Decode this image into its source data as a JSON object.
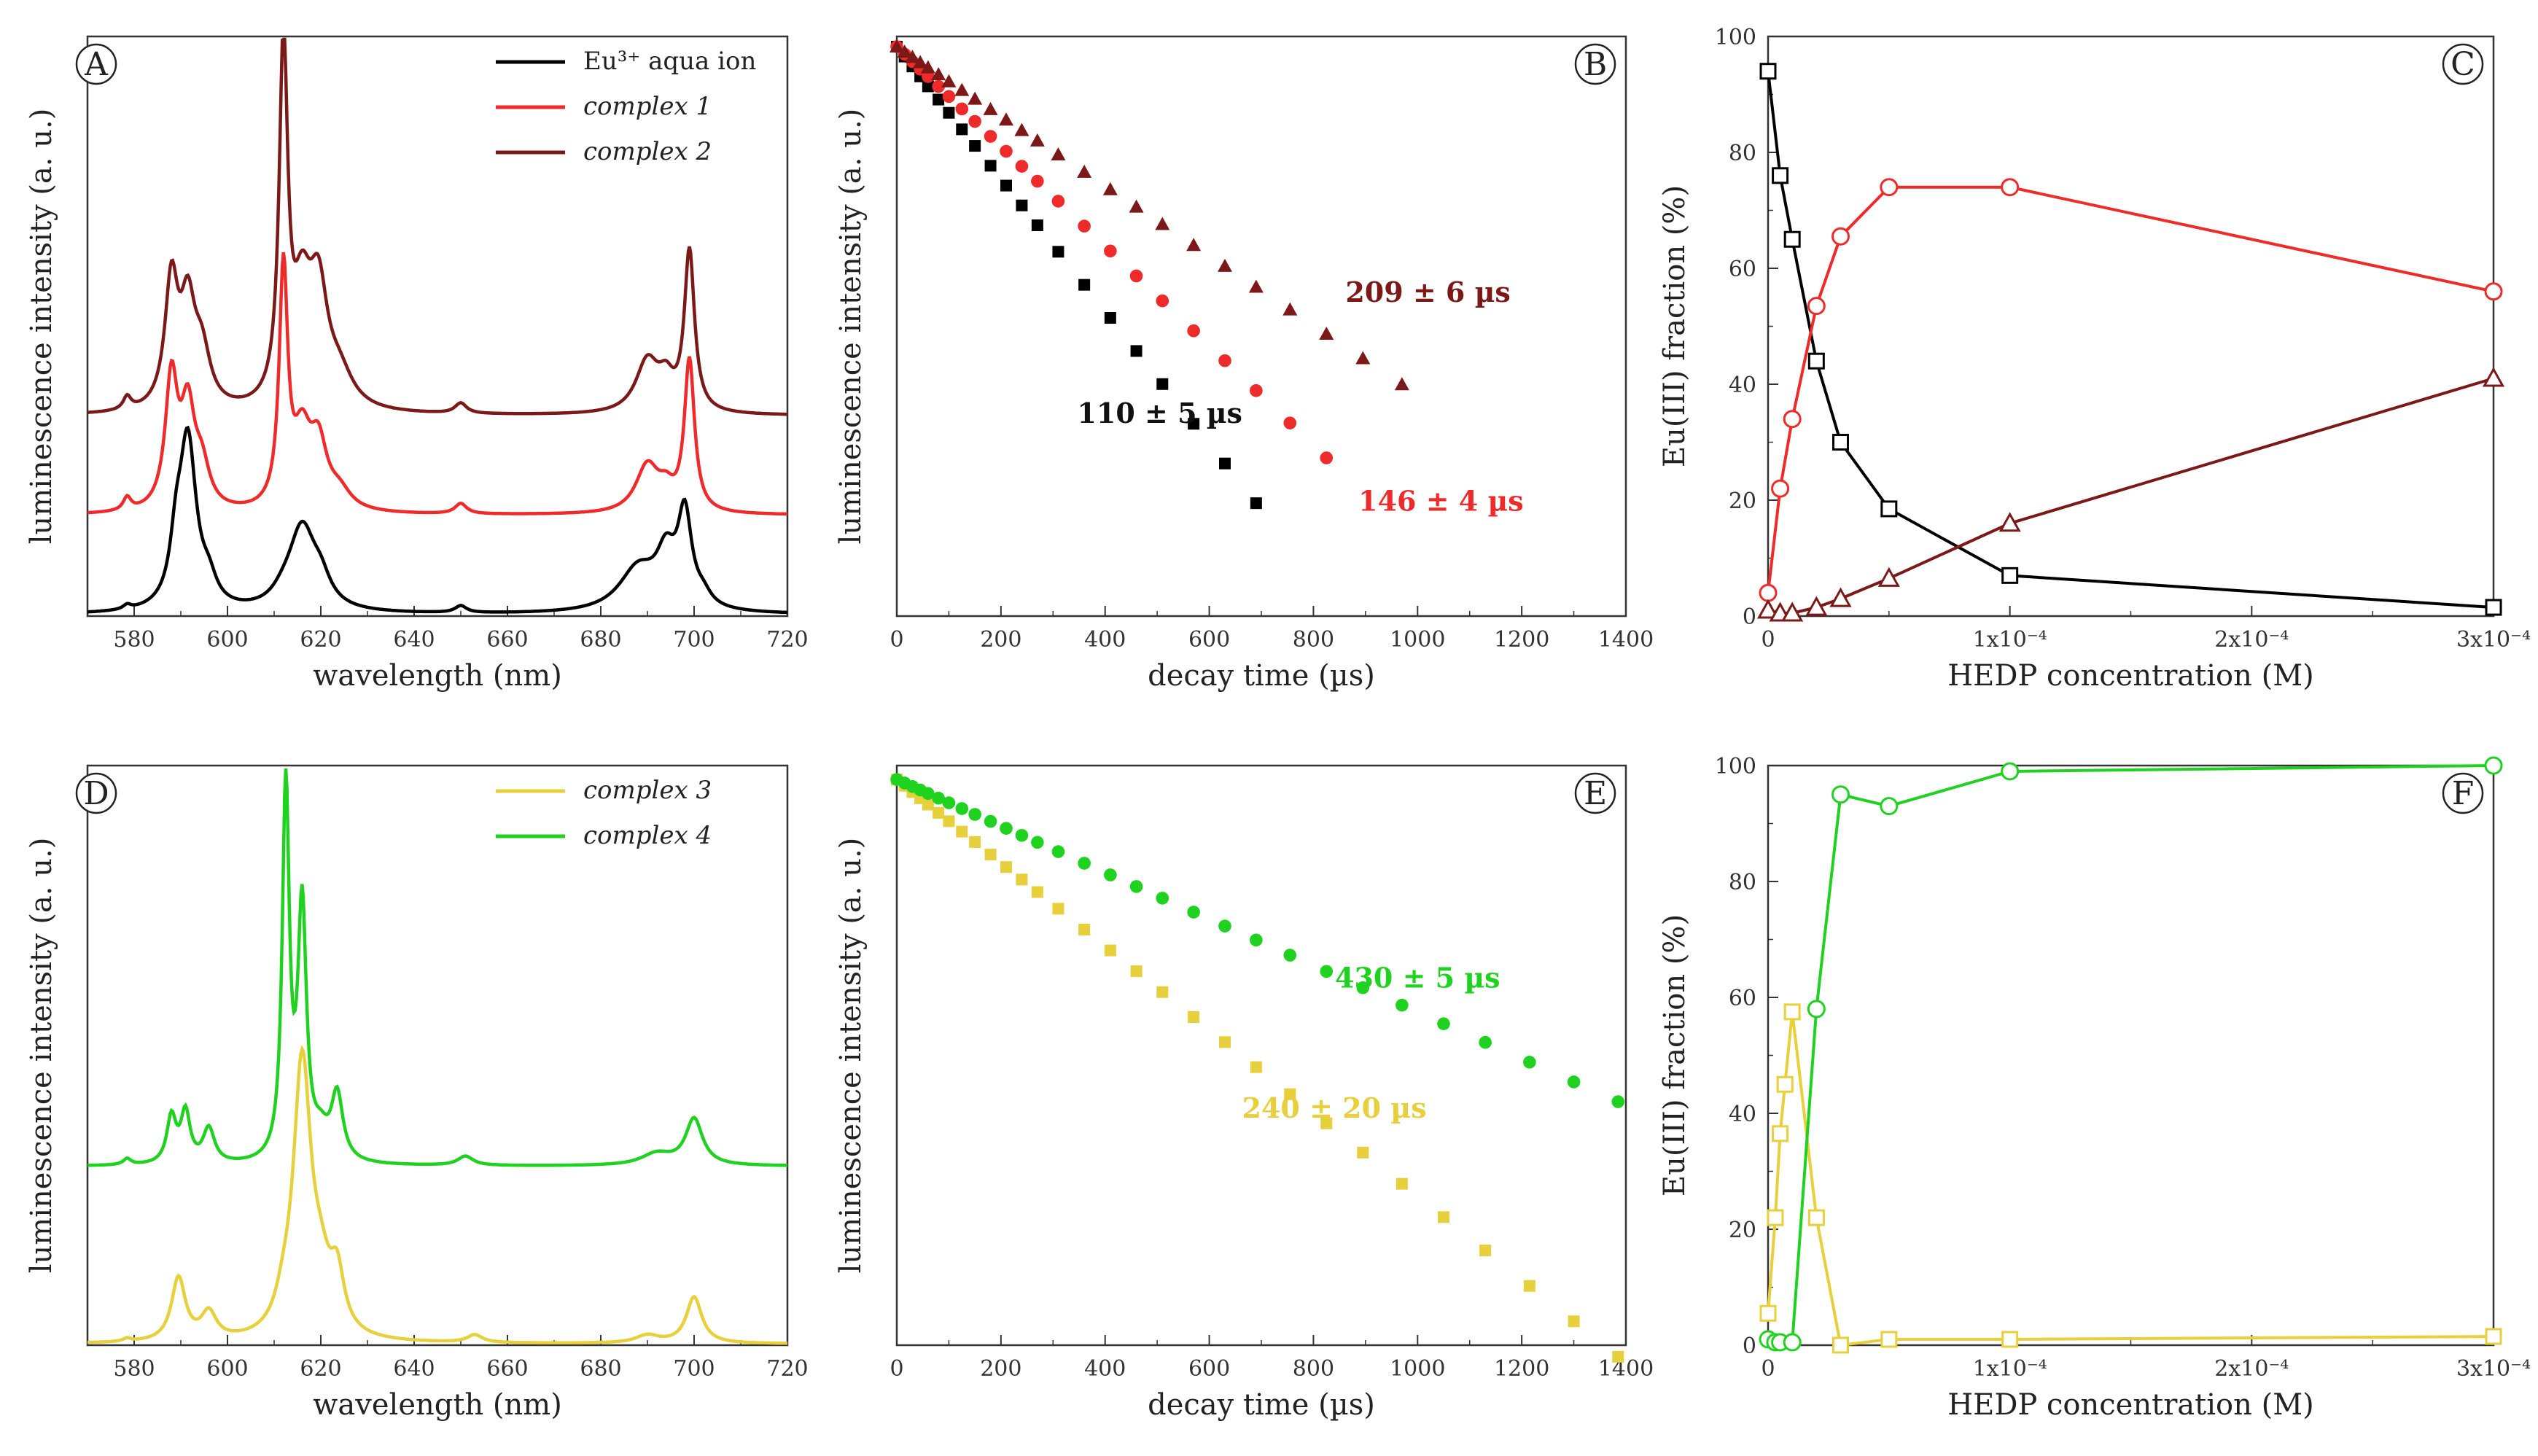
{
  "chart_data": [
    {
      "panel": "A",
      "type": "line",
      "xlabel": "wavelength (nm)",
      "ylabel": "luminescence intensity (a. u.)",
      "xlim": [
        570,
        720
      ],
      "ylim": [
        0,
        6.7
      ],
      "xticks": [
        580,
        600,
        620,
        640,
        660,
        680,
        700,
        720
      ],
      "legend": {
        "placement": "top-right",
        "entries": [
          {
            "text": "Eu³⁺ aqua ion",
            "italic": false,
            "color": "#000000"
          },
          {
            "text": "complex 1",
            "italic": true,
            "color": "#ee2a2a"
          },
          {
            "text": "complex 2",
            "italic": true,
            "color": "#7b1818"
          }
        ]
      },
      "series": [
        {
          "name": "Eu3+ aqua ion",
          "color": "#000000",
          "offset": 0,
          "peaks": [
            [
              578.5,
              0.05,
              1.0
            ],
            [
              589,
              0.55,
              1.5
            ],
            [
              591.5,
              1.95,
              2.2
            ],
            [
              596,
              0.25,
              2.0
            ],
            [
              612,
              0.1,
              3.0
            ],
            [
              616,
              0.95,
              3.5
            ],
            [
              620,
              0.25,
              2.5
            ],
            [
              650,
              0.08,
              1.5
            ],
            [
              688,
              0.5,
              5.0
            ],
            [
              694,
              0.55,
              2.5
            ],
            [
              698,
              1.05,
              1.8
            ],
            [
              702,
              0.12,
              2.0
            ]
          ]
        },
        {
          "name": "complex 1",
          "color": "#ee2a2a",
          "offset": 1.15,
          "peaks": [
            [
              578.5,
              0.15,
              1.0
            ],
            [
              588,
              1.5,
              1.6
            ],
            [
              591.5,
              1.1,
              1.8
            ],
            [
              594.5,
              0.45,
              2.0
            ],
            [
              612,
              2.75,
              1.1
            ],
            [
              616,
              0.8,
              2.3
            ],
            [
              619.5,
              0.7,
              2.2
            ],
            [
              624,
              0.2,
              3.0
            ],
            [
              650,
              0.12,
              1.5
            ],
            [
              690,
              0.55,
              3.0
            ],
            [
              694,
              0.2,
              2.0
            ],
            [
              699,
              1.75,
              1.3
            ]
          ]
        },
        {
          "name": "complex 2",
          "color": "#7b1818",
          "offset": 2.3,
          "peaks": [
            [
              578.5,
              0.15,
              1.0
            ],
            [
              588,
              1.45,
              1.7
            ],
            [
              591.5,
              1.1,
              1.9
            ],
            [
              594.5,
              0.6,
              2.2
            ],
            [
              612,
              4.1,
              1.1
            ],
            [
              616,
              1.15,
              2.4
            ],
            [
              619.5,
              1.25,
              2.4
            ],
            [
              624,
              0.35,
              3.5
            ],
            [
              650,
              0.12,
              1.5
            ],
            [
              690,
              0.6,
              3.0
            ],
            [
              694,
              0.3,
              2.0
            ],
            [
              699,
              1.85,
              1.3
            ]
          ]
        }
      ]
    },
    {
      "panel": "B",
      "type": "scatter",
      "xlabel": "decay time (µs)",
      "ylabel": "luminescence intensity (a. u.)",
      "xlim": [
        0,
        1400
      ],
      "yscale": "log",
      "ylim": [
        0.0004,
        1.15
      ],
      "xticks": [
        0,
        200,
        400,
        600,
        800,
        1000,
        1200,
        1400
      ],
      "series": [
        {
          "name": "Eu3+ aqua ion",
          "marker": "square",
          "color": "#000000",
          "lifetime": 110,
          "x": [
            0,
            15,
            30,
            45,
            60,
            80,
            100,
            125,
            150,
            180,
            210,
            240,
            270,
            310,
            360,
            410,
            460,
            510,
            570,
            630,
            690
          ]
        },
        {
          "name": "complex 1",
          "marker": "circle",
          "color": "#ee2a2a",
          "lifetime": 146,
          "x": [
            0,
            15,
            30,
            45,
            60,
            80,
            100,
            125,
            150,
            180,
            210,
            240,
            270,
            310,
            360,
            410,
            460,
            510,
            570,
            630,
            690,
            755,
            825
          ]
        },
        {
          "name": "complex 2",
          "marker": "triangle",
          "color": "#7b1818",
          "lifetime": 209,
          "x": [
            0,
            15,
            30,
            45,
            60,
            80,
            100,
            125,
            150,
            180,
            210,
            240,
            270,
            310,
            360,
            410,
            460,
            510,
            570,
            630,
            690,
            755,
            825,
            895,
            970
          ]
        }
      ],
      "annotations": [
        {
          "text": "209 ± 6 µs",
          "color": "#7b1818",
          "x": 1020,
          "y": 0.03
        },
        {
          "text": "110 ± 5 µs",
          "color": "#111111",
          "x": 505,
          "y": 0.0057
        },
        {
          "text": "146 ± 4 µs",
          "color": "#ee2a2a",
          "x": 1045,
          "y": 0.0017
        }
      ]
    },
    {
      "panel": "C",
      "type": "line",
      "xlabel": "HEDP concentration (M)",
      "ylabel": "Eu(III) fraction (%)",
      "xlim": [
        0,
        0.0003
      ],
      "ylim": [
        0,
        100
      ],
      "yticks": [
        0,
        20,
        40,
        60,
        80,
        100
      ],
      "xtick_labels": [
        "0",
        "1x10⁻⁴",
        "2x10⁻⁴",
        "3x10⁻⁴"
      ],
      "series": [
        {
          "name": "Eu3+ aqua ion",
          "marker": "square",
          "color": "#000000",
          "x": [
            0,
            5e-06,
            1e-05,
            2e-05,
            3e-05,
            5e-05,
            0.0001,
            0.0003
          ],
          "y": [
            94,
            76,
            65,
            44,
            30,
            18.5,
            7,
            1.5
          ]
        },
        {
          "name": "complex 1",
          "marker": "circle",
          "color": "#ee2a2a",
          "x": [
            0,
            5e-06,
            1e-05,
            2e-05,
            3e-05,
            5e-05,
            0.0001,
            0.0003
          ],
          "y": [
            4,
            22,
            34,
            53.5,
            65.5,
            74,
            74,
            56
          ]
        },
        {
          "name": "complex 2",
          "marker": "triangle",
          "color": "#7b1818",
          "x": [
            0,
            5e-06,
            1e-05,
            2e-05,
            3e-05,
            5e-05,
            0.0001,
            0.0003
          ],
          "y": [
            1,
            0.5,
            0.5,
            1.5,
            3,
            6.5,
            16,
            41
          ]
        }
      ]
    },
    {
      "panel": "D",
      "type": "line",
      "xlabel": "wavelength (nm)",
      "ylabel": "luminescence intensity (a. u.)",
      "xlim": [
        570,
        720
      ],
      "ylim": [
        0,
        7.5
      ],
      "xticks": [
        580,
        600,
        620,
        640,
        660,
        680,
        700,
        720
      ],
      "legend": {
        "placement": "top-right",
        "entries": [
          {
            "text": "complex 3",
            "italic": true,
            "color": "#e8cf3c"
          },
          {
            "text": "complex 4",
            "italic": true,
            "color": "#1fd21f"
          }
        ]
      },
      "series": [
        {
          "name": "complex 3",
          "color": "#e8cf3c",
          "offset": 0,
          "peaks": [
            [
              578.5,
              0.04,
              1.0
            ],
            [
              589.5,
              0.82,
              1.8
            ],
            [
              596,
              0.35,
              2.0
            ],
            [
              612,
              0.25,
              2.0
            ],
            [
              616,
              3.55,
              2.3
            ],
            [
              620,
              0.6,
              2.5
            ],
            [
              623.5,
              0.7,
              1.8
            ],
            [
              653,
              0.1,
              2.0
            ],
            [
              690,
              0.1,
              3.0
            ],
            [
              700,
              0.6,
              2.0
            ]
          ]
        },
        {
          "name": "complex 4",
          "color": "#1fd21f",
          "offset": 2.3,
          "peaks": [
            [
              578.5,
              0.08,
              1.0
            ],
            [
              588,
              0.6,
              1.2
            ],
            [
              591,
              0.65,
              1.2
            ],
            [
              596,
              0.45,
              1.5
            ],
            [
              612.5,
              4.85,
              0.9
            ],
            [
              616,
              3.25,
              1.1
            ],
            [
              620,
              0.3,
              2.0
            ],
            [
              623.5,
              0.85,
              1.5
            ],
            [
              651,
              0.12,
              2.0
            ],
            [
              692,
              0.15,
              4.0
            ],
            [
              700,
              0.6,
              2.2
            ]
          ]
        }
      ]
    },
    {
      "panel": "E",
      "type": "scatter",
      "xlabel": "decay time (µs)",
      "ylabel": "luminescence intensity (a. u.)",
      "xlim": [
        0,
        1400
      ],
      "yscale": "log",
      "ylim": [
        0.0035,
        1.15
      ],
      "xticks": [
        0,
        200,
        400,
        600,
        800,
        1000,
        1200,
        1400
      ],
      "series": [
        {
          "name": "complex 3",
          "marker": "square",
          "color": "#e8cf3c",
          "lifetime": 240,
          "x": [
            0,
            15,
            30,
            45,
            60,
            80,
            100,
            125,
            150,
            180,
            210,
            240,
            270,
            310,
            360,
            410,
            460,
            510,
            570,
            630,
            690,
            755,
            825,
            895,
            970,
            1050,
            1130,
            1215,
            1300,
            1385
          ]
        },
        {
          "name": "complex 4",
          "marker": "circle",
          "color": "#1fd21f",
          "lifetime": 430,
          "x": [
            0,
            15,
            30,
            45,
            60,
            80,
            100,
            125,
            150,
            180,
            210,
            240,
            270,
            310,
            360,
            410,
            460,
            510,
            570,
            630,
            690,
            755,
            825,
            895,
            970,
            1050,
            1130,
            1215,
            1300,
            1385
          ]
        }
      ],
      "annotations": [
        {
          "text": "430 ± 5 µs",
          "color": "#1fd21f",
          "x": 1000,
          "y": 0.125
        },
        {
          "text": "240 ± 20 µs",
          "color": "#e8cf3c",
          "x": 840,
          "y": 0.034
        }
      ]
    },
    {
      "panel": "F",
      "type": "line",
      "xlabel": "HEDP concentration (M)",
      "ylabel": "Eu(III) fraction (%)",
      "xlim": [
        0,
        0.0003
      ],
      "ylim": [
        0,
        100
      ],
      "yticks": [
        0,
        20,
        40,
        60,
        80,
        100
      ],
      "xtick_labels": [
        "0",
        "1x10⁻⁴",
        "2x10⁻⁴",
        "3x10⁻⁴"
      ],
      "series": [
        {
          "name": "complex 3",
          "marker": "square",
          "color": "#e8cf3c",
          "x": [
            0,
            3e-06,
            5e-06,
            7e-06,
            1e-05,
            2e-05,
            3e-05,
            5e-05,
            0.0001,
            0.0003
          ],
          "y": [
            5.5,
            22,
            36.5,
            45,
            57.5,
            22,
            0,
            1,
            1,
            1.5
          ]
        },
        {
          "name": "complex 4",
          "marker": "circle",
          "color": "#1fd21f",
          "x": [
            0,
            3e-06,
            5e-06,
            1e-05,
            2e-05,
            3e-05,
            5e-05,
            0.0001,
            0.0003
          ],
          "y": [
            1,
            0.5,
            0.5,
            0.5,
            58,
            95,
            93,
            99,
            100
          ]
        }
      ]
    }
  ]
}
